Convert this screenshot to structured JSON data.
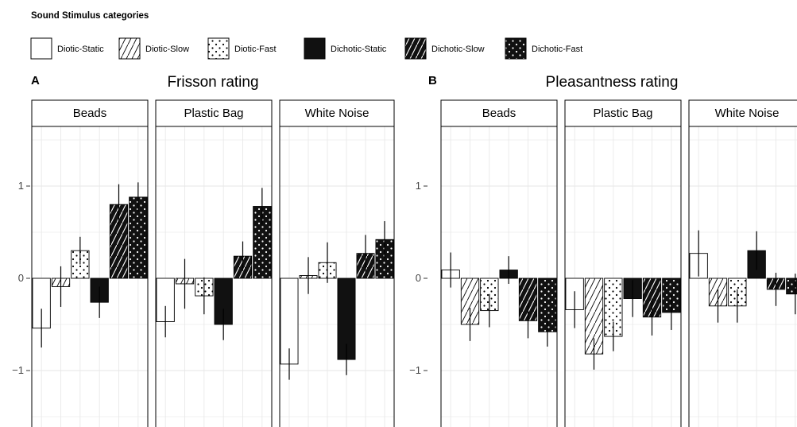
{
  "legend": {
    "title": "Sound Stimulus categories",
    "items": [
      {
        "label": "Diotic-Static",
        "fill": "white",
        "pattern": "none"
      },
      {
        "label": "Diotic-Slow",
        "fill": "white",
        "pattern": "hatch"
      },
      {
        "label": "Diotic-Fast",
        "fill": "white",
        "pattern": "dots"
      },
      {
        "label": "Dichotic-Static",
        "fill": "black",
        "pattern": "none"
      },
      {
        "label": "Dichotic-Slow",
        "fill": "black",
        "pattern": "hatch"
      },
      {
        "label": "Dichotic-Fast",
        "fill": "black",
        "pattern": "dots"
      }
    ]
  },
  "colors": {
    "dark_fill": "#111111",
    "light_fill": "#ffffff",
    "grid": "#e6e6e6",
    "strip_bg": "#ffffff"
  },
  "chart_data": [
    {
      "type": "bar",
      "letter": "A",
      "title": "Frisson rating",
      "yticks": [
        -1,
        0,
        1
      ],
      "ylim": [
        -1.65,
        1.65
      ],
      "grid": true,
      "facets": [
        {
          "label": "Beads",
          "values": [
            -0.54,
            -0.09,
            0.3,
            -0.26,
            0.8,
            0.88
          ],
          "errors": [
            0.21,
            0.22,
            0.15,
            0.17,
            0.22,
            0.16
          ]
        },
        {
          "label": "Plastic Bag",
          "values": [
            -0.47,
            -0.06,
            -0.19,
            -0.5,
            0.24,
            0.78
          ],
          "errors": [
            0.17,
            0.27,
            0.2,
            0.17,
            0.16,
            0.2
          ]
        },
        {
          "label": "White Noise",
          "values": [
            -0.93,
            0.03,
            0.17,
            -0.88,
            0.27,
            0.42
          ],
          "errors": [
            0.17,
            0.2,
            0.22,
            0.17,
            0.2,
            0.2
          ]
        }
      ]
    },
    {
      "type": "bar",
      "letter": "B",
      "title": "Pleasantness rating",
      "yticks": [
        -1,
        0,
        1
      ],
      "ylim": [
        -1.65,
        1.65
      ],
      "grid": true,
      "facets": [
        {
          "label": "Beads",
          "values": [
            0.09,
            -0.5,
            -0.35,
            0.09,
            -0.46,
            -0.58
          ],
          "errors": [
            0.19,
            0.18,
            0.18,
            0.15,
            0.19,
            0.16
          ]
        },
        {
          "label": "Plastic Bag",
          "values": [
            -0.34,
            -0.82,
            -0.63,
            -0.22,
            -0.42,
            -0.37
          ],
          "errors": [
            0.2,
            0.17,
            0.16,
            0.2,
            0.2,
            0.19
          ]
        },
        {
          "label": "White Noise",
          "values": [
            0.27,
            -0.3,
            -0.3,
            0.3,
            -0.12,
            -0.17
          ],
          "errors": [
            0.25,
            0.18,
            0.18,
            0.21,
            0.18,
            0.22
          ]
        }
      ]
    }
  ]
}
